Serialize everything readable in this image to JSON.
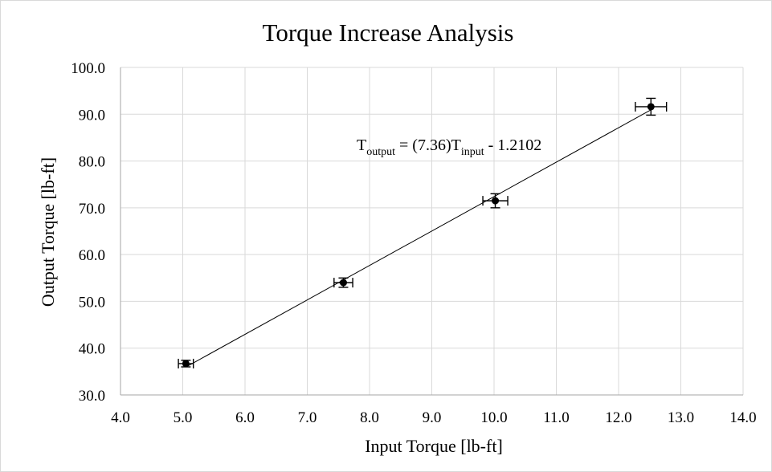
{
  "chart_data": {
    "type": "scatter",
    "title": "Torque Increase Analysis",
    "xlabel": "Input Torque [lb-ft]",
    "ylabel": "Output Torque [lb-ft]",
    "xlim": [
      4.0,
      14.0
    ],
    "ylim": [
      30.0,
      100.0
    ],
    "xticks": [
      4.0,
      5.0,
      6.0,
      7.0,
      8.0,
      9.0,
      10.0,
      11.0,
      12.0,
      13.0,
      14.0
    ],
    "yticks": [
      30.0,
      40.0,
      50.0,
      60.0,
      70.0,
      80.0,
      90.0,
      100.0
    ],
    "xtick_labels": [
      "4.0",
      "5.0",
      "6.0",
      "7.0",
      "8.0",
      "9.0",
      "10.0",
      "11.0",
      "12.0",
      "13.0",
      "14.0"
    ],
    "ytick_labels": [
      "30.0",
      "40.0",
      "50.0",
      "60.0",
      "70.0",
      "80.0",
      "90.0",
      "100.0"
    ],
    "grid": true,
    "points": [
      {
        "x": 5.05,
        "y": 36.7,
        "xerr": 0.12,
        "yerr": 0.7
      },
      {
        "x": 7.58,
        "y": 54.0,
        "xerr": 0.15,
        "yerr": 1.0
      },
      {
        "x": 10.02,
        "y": 71.5,
        "xerr": 0.2,
        "yerr": 1.5
      },
      {
        "x": 12.52,
        "y": 91.6,
        "xerr": 0.25,
        "yerr": 1.8
      }
    ],
    "trendline": {
      "slope": 7.36,
      "intercept": -1.2102,
      "x_range": [
        5.05,
        12.52
      ]
    },
    "equation": {
      "T1": "T",
      "sub1": "output",
      "mid": " = (7.36)T",
      "sub2": "input",
      "tail": " - 1.2102"
    }
  }
}
